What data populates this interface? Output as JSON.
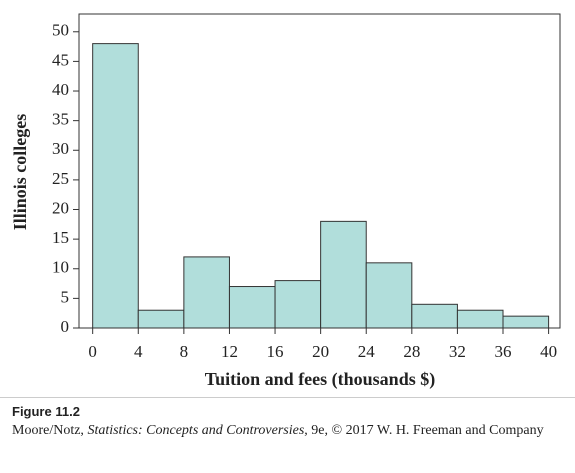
{
  "chart_data": {
    "type": "histogram",
    "xlabel": "Tuition and fees (thousands $)",
    "ylabel": "Illinois colleges",
    "bins": [
      0,
      4,
      8,
      12,
      16,
      20,
      24,
      28,
      32,
      36,
      40
    ],
    "values": [
      48,
      3,
      12,
      7,
      8,
      18,
      11,
      4,
      3,
      2
    ],
    "color": "#b1dedb",
    "xlim": [
      -1.2,
      41
    ],
    "ylim": [
      0,
      53
    ],
    "xticks": [
      0,
      4,
      8,
      12,
      16,
      20,
      24,
      28,
      32,
      36,
      40
    ],
    "yticks": [
      0,
      5,
      10,
      15,
      20,
      25,
      30,
      35,
      40,
      45,
      50
    ],
    "grid": false
  },
  "caption": {
    "label": "Figure 11.2",
    "parts": [
      "Moore/Notz, ",
      "Statistics: Concepts and Controversies",
      ", 9e, © 2017 W. H. Freeman and Company"
    ]
  }
}
